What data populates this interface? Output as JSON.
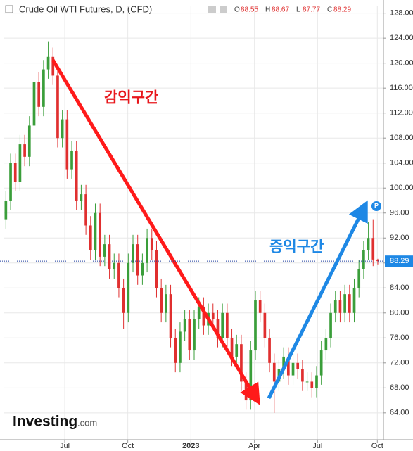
{
  "chart_data": {
    "type": "candlestick",
    "title": "Crude Oil WTI Futures, D, (CFD)",
    "legend_labels": [
      "O",
      "H",
      "L",
      "C"
    ],
    "brand": {
      "name": "Investing",
      "suffix": ".com"
    },
    "annotations": [
      "감익구간",
      "증익구간",
      "P"
    ],
    "up_color": "#3a9e3a",
    "down_color": "#e02f2f",
    "open": [
      95,
      98,
      104,
      101,
      107,
      105,
      110,
      117,
      113,
      119,
      121,
      118,
      108,
      111,
      103,
      106,
      98,
      99,
      94,
      90,
      96,
      89,
      91,
      87,
      88,
      84,
      80,
      88,
      91,
      86,
      88,
      92,
      90,
      84,
      80,
      83,
      76,
      72,
      77,
      79,
      74,
      79,
      81,
      78,
      80,
      79,
      76,
      80,
      76,
      73,
      75,
      69,
      66,
      74,
      82,
      80,
      76,
      72,
      69,
      71,
      73,
      70,
      72,
      71,
      69,
      69,
      68,
      70,
      74,
      76,
      80,
      82,
      80,
      83,
      80,
      84,
      87,
      90,
      92,
      88.55
    ],
    "high": [
      99.5,
      105.5,
      105.5,
      108.5,
      108.5,
      111.5,
      118.5,
      118.5,
      120.5,
      123.5,
      122.5,
      119.5,
      112.5,
      112.5,
      107.5,
      107.5,
      100.5,
      100.5,
      95.5,
      97.5,
      97.5,
      92.5,
      92.5,
      89.5,
      89.5,
      85.5,
      89.5,
      92.5,
      92.5,
      89.5,
      93.5,
      93.5,
      91.5,
      85.5,
      84.5,
      84.5,
      77.5,
      78.5,
      80.5,
      80.5,
      80.5,
      82.5,
      82.5,
      81.5,
      81.5,
      80.5,
      81.5,
      81.5,
      77.5,
      76.5,
      76.5,
      70.5,
      75.5,
      83.5,
      83.5,
      81.5,
      77.5,
      73.5,
      72.5,
      74.5,
      74.5,
      73.5,
      73.5,
      72.5,
      70.5,
      70.5,
      71.5,
      75.5,
      77.5,
      81.5,
      83.5,
      83.5,
      84.5,
      84.5,
      85.5,
      88.5,
      91.5,
      94.5,
      95,
      88.67
    ],
    "low": [
      93.5,
      96.5,
      99.5,
      99.5,
      103.5,
      103.5,
      108.5,
      111.5,
      111.5,
      117.5,
      116.5,
      106.5,
      106.5,
      101.5,
      101.5,
      96.5,
      96.5,
      92.5,
      88.5,
      88.5,
      87.5,
      87.5,
      85.5,
      85.5,
      82.5,
      77.5,
      78.5,
      86.5,
      84.5,
      84.5,
      86.5,
      88.5,
      82.5,
      78.5,
      78.5,
      74.5,
      70.5,
      70.5,
      75.5,
      72.5,
      72.5,
      77.5,
      76.5,
      76.5,
      77.5,
      74.5,
      74.5,
      74.5,
      71.5,
      71.5,
      67.5,
      64.5,
      64.5,
      72.5,
      78.5,
      74.5,
      70.5,
      64,
      67.5,
      69.5,
      68.5,
      68.5,
      69.5,
      67.5,
      67.5,
      66.5,
      66.5,
      68.5,
      72.5,
      74.5,
      78.5,
      78.5,
      78.5,
      78.5,
      78.5,
      82.5,
      85.5,
      88.5,
      87.5,
      87.77
    ],
    "close": [
      98,
      104,
      101,
      107,
      105,
      110,
      117,
      113,
      119,
      121,
      118,
      108,
      111,
      103,
      106,
      98,
      99,
      94,
      90,
      96,
      89,
      91,
      87,
      88,
      84,
      80,
      88,
      91,
      86,
      88,
      92,
      90,
      84,
      80,
      83,
      76,
      72,
      77,
      79,
      74,
      79,
      81,
      78,
      80,
      79,
      76,
      80,
      76,
      73,
      75,
      69,
      66,
      74,
      82,
      80,
      76,
      72,
      69,
      71,
      73,
      70,
      72,
      71,
      69,
      69,
      68,
      70,
      74,
      76,
      80,
      82,
      80,
      83,
      80,
      84,
      87,
      90,
      92,
      88.55,
      88.29
    ],
    "xlim": [
      -0.5,
      80.2
    ],
    "xticks": [
      {
        "value": 12.5,
        "label": "Jul"
      },
      {
        "value": 25.9,
        "label": "Oct"
      },
      {
        "value": 39.3,
        "label": "2023"
      },
      {
        "value": 52.8,
        "label": "Apr"
      },
      {
        "value": 66.2,
        "label": "Jul"
      },
      {
        "value": 78.9,
        "label": "Oct"
      }
    ],
    "ylim": [
      59.7,
      129.2
    ],
    "yticks": [
      {
        "value": 64,
        "label": "64.00"
      },
      {
        "value": 68,
        "label": "68.00"
      },
      {
        "value": 72,
        "label": "72.00"
      },
      {
        "value": 76,
        "label": "76.00"
      },
      {
        "value": 80,
        "label": "80.00"
      },
      {
        "value": 84,
        "label": "84.00"
      },
      {
        "value": 88,
        "label": "88.00"
      },
      {
        "value": 92,
        "label": "92.00"
      },
      {
        "value": 96,
        "label": "96.00"
      },
      {
        "value": 100,
        "label": "100.00"
      },
      {
        "value": 104,
        "label": "104.00"
      },
      {
        "value": 108,
        "label": "108.00"
      },
      {
        "value": 112,
        "label": "112.00"
      },
      {
        "value": 116,
        "label": "116.00"
      },
      {
        "value": 120,
        "label": "120.00"
      },
      {
        "value": 124,
        "label": "124.00"
      },
      {
        "value": 128,
        "label": "128.00"
      }
    ],
    "grid": true
  }
}
